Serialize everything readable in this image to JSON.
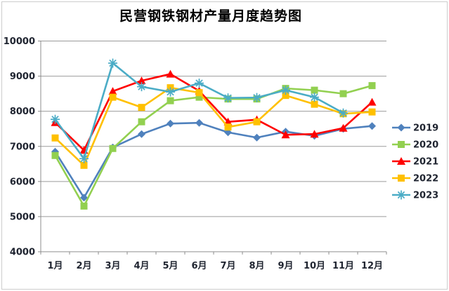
{
  "chart_data": {
    "type": "line",
    "title": "民营钢铁钢材产量月度趋势图",
    "categories": [
      "1月",
      "2月",
      "3月",
      "4月",
      "5月",
      "6月",
      "7月",
      "8月",
      "9月",
      "10月",
      "11月",
      "12月"
    ],
    "series": [
      {
        "name": "2019",
        "color": "#4F81BD",
        "marker": "diamond",
        "values": [
          6850,
          5540,
          6970,
          7350,
          7650,
          7670,
          7400,
          7250,
          7420,
          7300,
          7500,
          7580
        ]
      },
      {
        "name": "2020",
        "color": "#92D050",
        "marker": "square",
        "values": [
          6740,
          5300,
          6940,
          7700,
          8300,
          8400,
          8350,
          8350,
          8650,
          8600,
          8500,
          8730
        ]
      },
      {
        "name": "2021",
        "color": "#FF0000",
        "marker": "triangle",
        "values": [
          7680,
          6890,
          8570,
          8870,
          9060,
          8580,
          7700,
          7760,
          7330,
          7350,
          7520,
          8260
        ]
      },
      {
        "name": "2022",
        "color": "#FFC000",
        "marker": "square",
        "values": [
          7240,
          6460,
          8400,
          8110,
          8670,
          8530,
          7550,
          7700,
          8450,
          8200,
          7930,
          7980
        ]
      },
      {
        "name": "2023",
        "color": "#4BACC6",
        "marker": "asterisk",
        "values": [
          7770,
          6650,
          9370,
          8700,
          8550,
          8800,
          8380,
          8390,
          8600,
          8400,
          7950,
          null
        ]
      }
    ],
    "ylim": [
      4000,
      10000
    ],
    "ytick_step": 1000,
    "yticks": [
      "10000",
      "9000",
      "8000",
      "7000",
      "6000",
      "5000",
      "4000"
    ],
    "xlabel": "",
    "ylabel": "",
    "grid": "horizontal",
    "legend_position": "right",
    "legend_entries": [
      "2019",
      "2020",
      "2021",
      "2022",
      "2023"
    ]
  },
  "colors": {
    "background": "#FFFFFF",
    "gridline": "#9B9B9B",
    "axis_line": "#8C8C8C",
    "tick_text": "#1F2430",
    "title_text": "#000000",
    "frame_border": "#CDCDCD"
  }
}
